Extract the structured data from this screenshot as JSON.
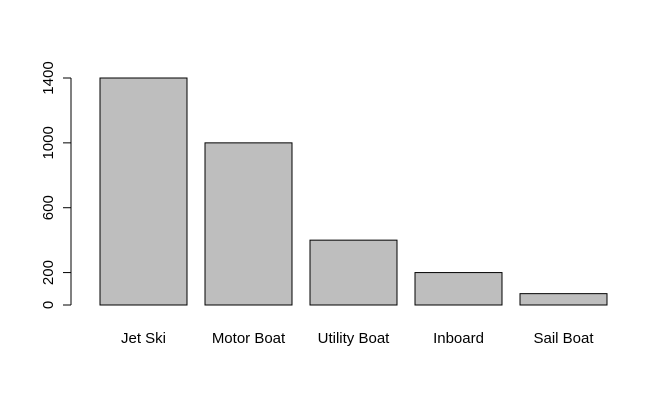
{
  "chart_data": {
    "type": "bar",
    "categories": [
      "Jet Ski",
      "Motor Boat",
      "Utility Boat",
      "Inboard",
      "Sail Boat"
    ],
    "values": [
      1400,
      1000,
      400,
      200,
      70
    ],
    "title": "",
    "xlabel": "",
    "ylabel": "",
    "ylim": [
      0,
      1400
    ],
    "yticks": [
      0,
      200,
      600,
      1000,
      1400
    ],
    "grid": false,
    "bar_color": "#bebebe",
    "bar_border_color": "#000000"
  }
}
